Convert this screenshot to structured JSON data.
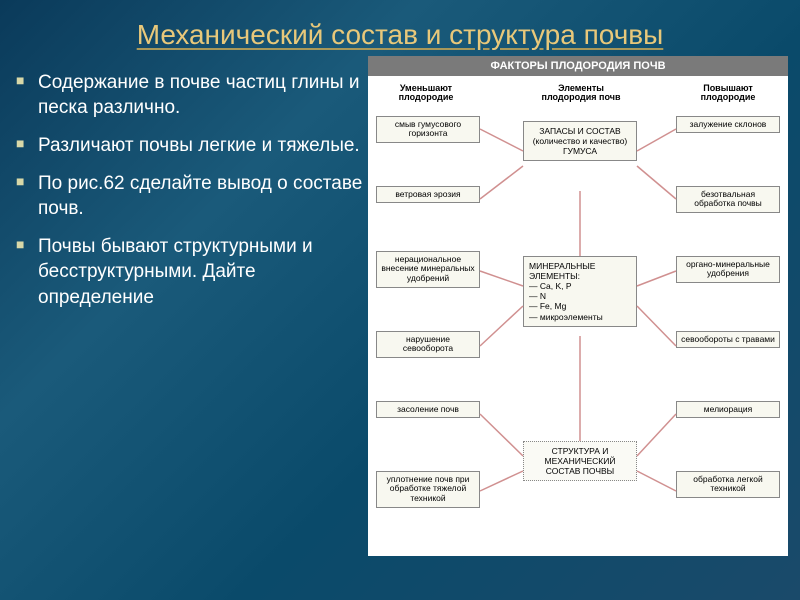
{
  "title": "Механический состав и структура почвы",
  "bullets": [
    "Содержание в почве частиц глины и песка различно.",
    "Различают почвы легкие и тяжелые.",
    "По рис.62 сделайте вывод о составе почв.",
    "Почвы бывают структурными и бесструктурными. Дайте определение"
  ],
  "diagram": {
    "title": "ФАКТОРЫ ПЛОДОРОДИЯ ПОЧВ",
    "col_headers": {
      "left": "Уменьшают\nплодородие",
      "center": "Элементы\nплодородия почв",
      "right": "Повышают\nплодородие"
    },
    "left_boxes": [
      "смыв гумусового горизонта",
      "ветровая эрозия",
      "нерациональное внесение минеральных удобрений",
      "нарушение севооборота",
      "засоление почв",
      "уплотнение почв при обработке тяжелой техникой"
    ],
    "center_boxes": [
      "ЗАПАСЫ И СОСТАВ (количество и качество) ГУМУСА",
      "МИНЕРАЛЬНЫЕ ЭЛЕМЕНТЫ:\n— Ca, K, P\n— N\n— Fe, Mg\n— микроэлементы",
      "СТРУКТУРА И МЕХАНИЧЕСКИЙ СОСТАВ ПОЧВЫ"
    ],
    "right_boxes": [
      "залужение склонов",
      "безотвальная обработка почвы",
      "органо-минеральные удобрения",
      "севообороты с травами",
      "мелиорация",
      "обработка легкой техникой"
    ],
    "colors": {
      "title_bg": "#7a7a7a",
      "box_bg": "#f8f8f0",
      "box_border": "#888888",
      "connector": "#d09090",
      "page_bg": "#ffffff"
    }
  }
}
